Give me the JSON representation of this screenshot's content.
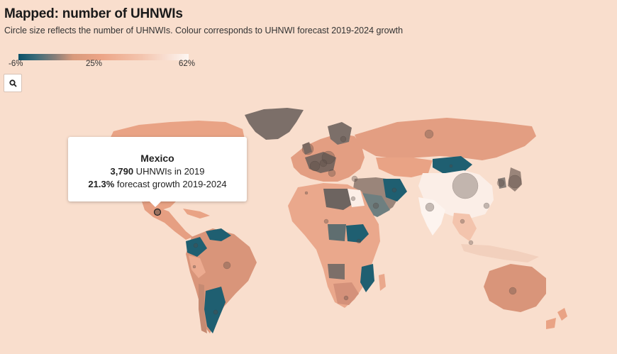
{
  "header": {
    "title": "Mapped: number of UHNWIs",
    "subtitle": "Circle size reflects the number of UHNWIs. Colour corresponds to UHNWI forecast 2019-2024 growth"
  },
  "legend": {
    "min_label": "-6%",
    "mid_label": "25%",
    "max_label": "62%",
    "colors": [
      "#0b5168",
      "#8a7f79",
      "#eca486",
      "#fdf6f2"
    ]
  },
  "search": {
    "icon": "search-icon"
  },
  "tooltip": {
    "country": "Mexico",
    "uhnwi_value": "3,790",
    "uhnwi_text": " UHNWIs in 2019",
    "growth_value": "21.3%",
    "growth_text": " forecast growth 2019-2024"
  },
  "colors": {
    "background": "#f9decd",
    "low": "#1f5f71",
    "mid": "#8a7f79",
    "high": "#e9a385",
    "very_high": "#fbeee7"
  }
}
